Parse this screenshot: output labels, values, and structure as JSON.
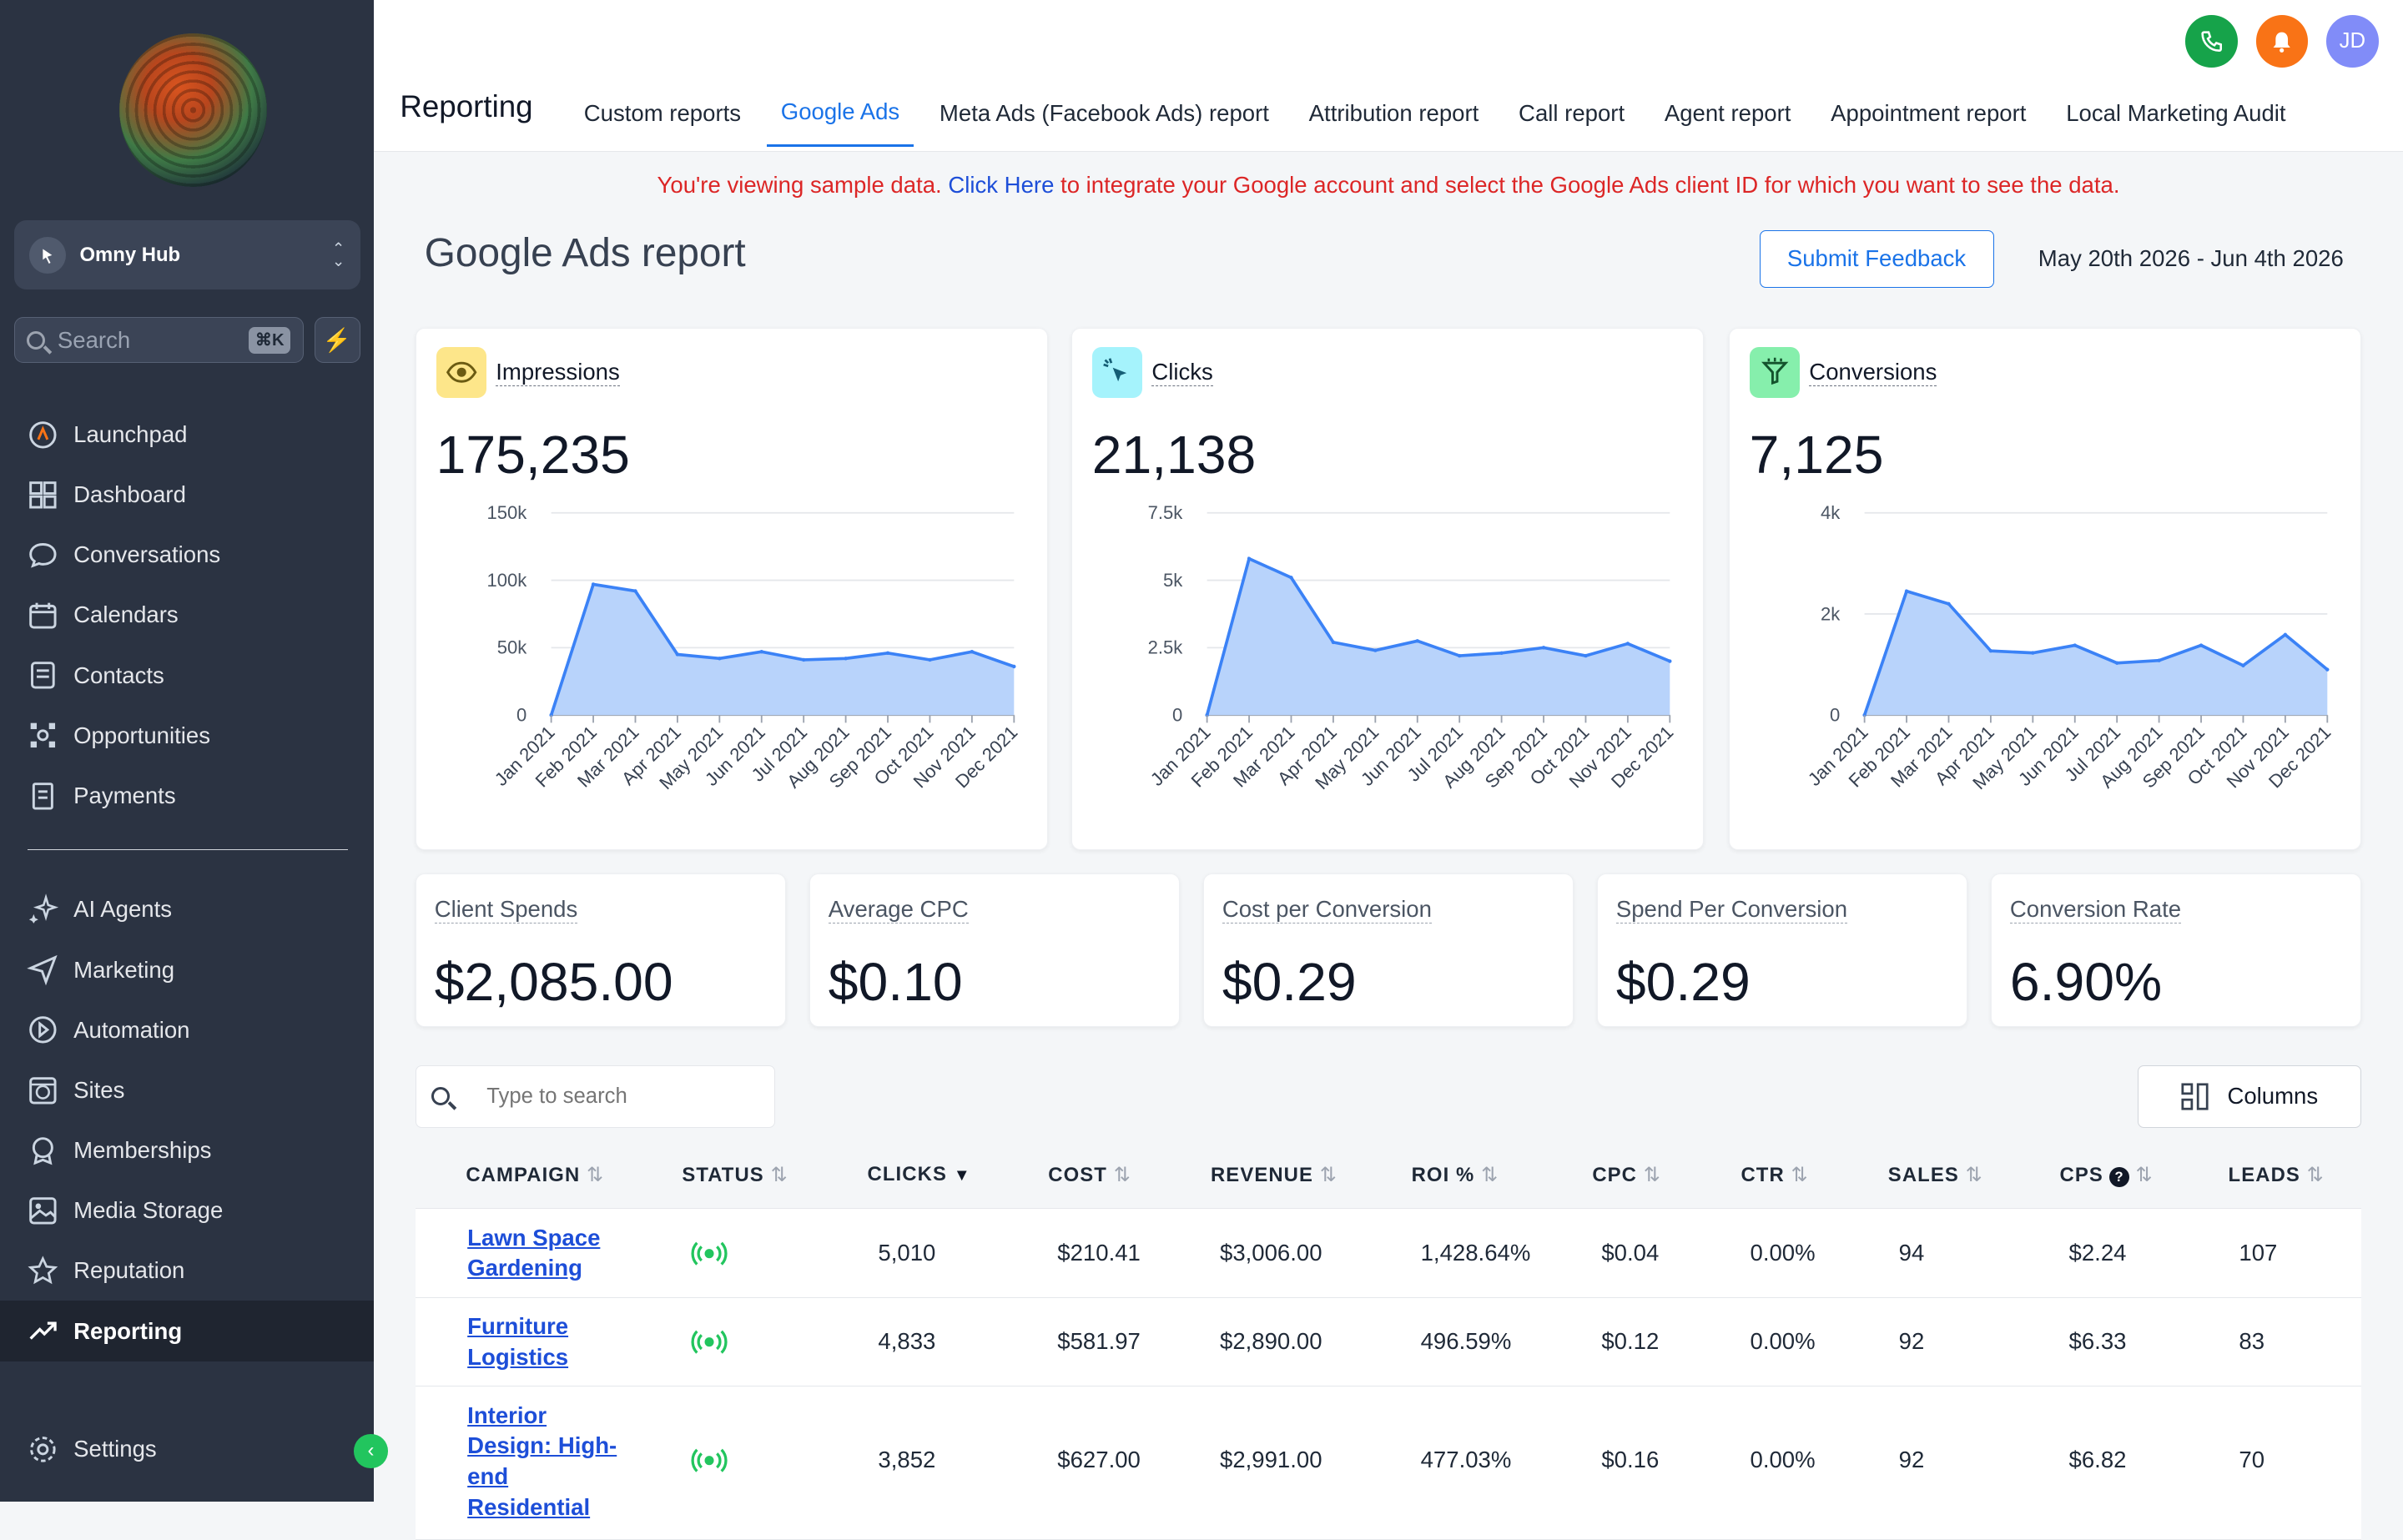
{
  "sidebar": {
    "account_name": "Omny Hub",
    "search_placeholder": "Search",
    "search_shortcut": "⌘K",
    "items": [
      {
        "label": "Launchpad",
        "icon": "launchpad-icon"
      },
      {
        "label": "Dashboard",
        "icon": "dashboard-icon"
      },
      {
        "label": "Conversations",
        "icon": "chat-icon"
      },
      {
        "label": "Calendars",
        "icon": "calendar-icon"
      },
      {
        "label": "Contacts",
        "icon": "contacts-icon"
      },
      {
        "label": "Opportunities",
        "icon": "opportunities-icon"
      },
      {
        "label": "Payments",
        "icon": "payments-icon"
      }
    ],
    "items2": [
      {
        "label": "AI Agents",
        "icon": "sparkle-icon"
      },
      {
        "label": "Marketing",
        "icon": "send-icon"
      },
      {
        "label": "Automation",
        "icon": "automation-icon"
      },
      {
        "label": "Sites",
        "icon": "sites-icon"
      },
      {
        "label": "Memberships",
        "icon": "badge-icon"
      },
      {
        "label": "Media Storage",
        "icon": "image-icon"
      },
      {
        "label": "Reputation",
        "icon": "star-icon"
      },
      {
        "label": "Reporting",
        "icon": "trend-icon",
        "active": true
      }
    ],
    "settings_label": "Settings"
  },
  "header": {
    "title": "Reporting",
    "tabs": [
      {
        "label": "Custom reports"
      },
      {
        "label": "Google Ads",
        "active": true
      },
      {
        "label": "Meta Ads (Facebook Ads) report"
      },
      {
        "label": "Attribution report"
      },
      {
        "label": "Call report"
      },
      {
        "label": "Agent report"
      },
      {
        "label": "Appointment report"
      },
      {
        "label": "Local Marketing Audit"
      }
    ],
    "avatar_initials": "JD"
  },
  "notice": {
    "prefix": "You're viewing sample data.",
    "link": "Click Here",
    "suffix": "to integrate your Google account and select the Google Ads client ID for which you want to see the data."
  },
  "page": {
    "title": "Google Ads report",
    "feedback_label": "Submit Feedback",
    "date_range": "May 20th 2026 - Jun 4th 2026"
  },
  "metrics": [
    {
      "label": "Impressions",
      "value": "175,235",
      "icon": "eye-icon",
      "icon_bg": "#fde68a"
    },
    {
      "label": "Clicks",
      "value": "21,138",
      "icon": "cursor-click-icon",
      "icon_bg": "#a5f3fc"
    },
    {
      "label": "Conversions",
      "value": "7,125",
      "icon": "funnel-icon",
      "icon_bg": "#86efac"
    }
  ],
  "chart_data": [
    {
      "type": "area",
      "categories": [
        "Jan 2021",
        "Feb 2021",
        "Mar 2021",
        "Apr 2021",
        "May 2021",
        "Jun 2021",
        "Jul 2021",
        "Aug 2021",
        "Sep 2021",
        "Oct 2021",
        "Nov 2021",
        "Dec 2021"
      ],
      "values": [
        0,
        97000,
        92000,
        45000,
        42000,
        47000,
        41000,
        42000,
        46000,
        41000,
        47000,
        36000
      ],
      "yticks": [
        "0",
        "50k",
        "100k",
        "150k"
      ],
      "ylim": [
        0,
        150000
      ],
      "color": "#3b82f6",
      "fill": "#b8d3fb"
    },
    {
      "type": "area",
      "categories": [
        "Jan 2021",
        "Feb 2021",
        "Mar 2021",
        "Apr 2021",
        "May 2021",
        "Jun 2021",
        "Jul 2021",
        "Aug 2021",
        "Sep 2021",
        "Oct 2021",
        "Nov 2021",
        "Dec 2021"
      ],
      "values": [
        0,
        5800,
        5100,
        2700,
        2400,
        2750,
        2200,
        2300,
        2500,
        2200,
        2650,
        2000
      ],
      "yticks": [
        "0",
        "2.5k",
        "5k",
        "7.5k"
      ],
      "ylim": [
        0,
        7500
      ],
      "color": "#3b82f6",
      "fill": "#b8d3fb"
    },
    {
      "type": "area",
      "categories": [
        "Jan 2021",
        "Feb 2021",
        "Mar 2021",
        "Apr 2021",
        "May 2021",
        "Jun 2021",
        "Jul 2021",
        "Aug 2021",
        "Sep 2021",
        "Oct 2021",
        "Nov 2021",
        "Dec 2021"
      ],
      "values": [
        0,
        2450,
        2200,
        1270,
        1230,
        1380,
        1030,
        1080,
        1380,
        980,
        1590,
        900
      ],
      "yticks": [
        "0",
        "2k",
        "4k"
      ],
      "ylim": [
        0,
        4000
      ],
      "color": "#3b82f6",
      "fill": "#b8d3fb"
    }
  ],
  "kpis": [
    {
      "label": "Client Spends",
      "value": "$2,085.00"
    },
    {
      "label": "Average CPC",
      "value": "$0.10"
    },
    {
      "label": "Cost per Conversion",
      "value": "$0.29"
    },
    {
      "label": "Spend Per Conversion",
      "value": "$0.29"
    },
    {
      "label": "Conversion Rate",
      "value": "6.90%"
    }
  ],
  "table": {
    "search_placeholder": "Type to search",
    "columns_label": "Columns",
    "headers": [
      "CAMPAIGN",
      "STATUS",
      "CLICKS",
      "COST",
      "REVENUE",
      "ROI %",
      "CPC",
      "CTR",
      "SALES",
      "CPS",
      "LEADS"
    ],
    "rows": [
      {
        "name": [
          "Lawn Space",
          "Gardening"
        ],
        "clicks": "5,010",
        "cost": "$210.41",
        "revenue": "$3,006.00",
        "roi": "1,428.64%",
        "cpc": "$0.04",
        "ctr": "0.00%",
        "sales": "94",
        "cps": "$2.24",
        "leads": "107"
      },
      {
        "name": [
          "Furniture",
          "Logistics"
        ],
        "clicks": "4,833",
        "cost": "$581.97",
        "revenue": "$2,890.00",
        "roi": "496.59%",
        "cpc": "$0.12",
        "ctr": "0.00%",
        "sales": "92",
        "cps": "$6.33",
        "leads": "83"
      },
      {
        "name": [
          "Interior",
          "Design: High-",
          "end",
          "Residential"
        ],
        "clicks": "3,852",
        "cost": "$627.00",
        "revenue": "$2,991.00",
        "roi": "477.03%",
        "cpc": "$0.16",
        "ctr": "0.00%",
        "sales": "92",
        "cps": "$6.82",
        "leads": "70"
      }
    ]
  }
}
